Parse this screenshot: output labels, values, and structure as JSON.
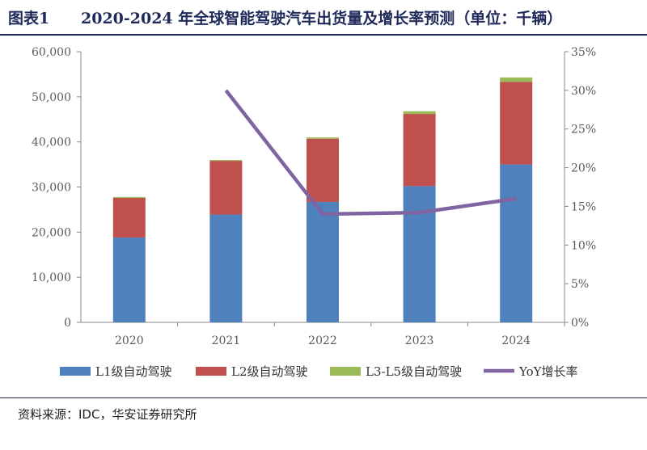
{
  "header": {
    "label": "图表1",
    "title": "2020-2024 年全球智能驾驶汽车出货量及增长率预测（单位：千辆）"
  },
  "source": "资料来源：IDC，华安证券研究所",
  "colors": {
    "L1": "#4f81bd",
    "L2": "#c0504d",
    "L3L5": "#9bbb59",
    "yoy": "#8064a2",
    "axis": "#888888",
    "title": "#1f2a5a"
  },
  "chart_data": {
    "type": "bar",
    "stacked": true,
    "categories": [
      "2020",
      "2021",
      "2022",
      "2023",
      "2024"
    ],
    "series": [
      {
        "name": "L1级自动驾驶",
        "values": [
          18800,
          23900,
          26700,
          30200,
          35000
        ]
      },
      {
        "name": "L2级自动驾驶",
        "values": [
          8800,
          11900,
          14000,
          16000,
          18300
        ]
      },
      {
        "name": "L3-L5级自动驾驶",
        "values": [
          200,
          200,
          300,
          600,
          1000
        ]
      }
    ],
    "line_series": {
      "name": "YoY增长率",
      "axis": "right",
      "values": [
        null,
        0.3,
        0.14,
        0.142,
        0.16
      ]
    },
    "ylim": [
      0,
      60000
    ],
    "y_ticks": [
      "0",
      "10,000",
      "20,000",
      "30,000",
      "40,000",
      "50,000",
      "60,000"
    ],
    "y2lim": [
      0,
      0.35
    ],
    "y2_ticks": [
      "0%",
      "5%",
      "10%",
      "15%",
      "20%",
      "25%",
      "30%",
      "35%"
    ],
    "legend_position": "bottom",
    "grid": false
  }
}
